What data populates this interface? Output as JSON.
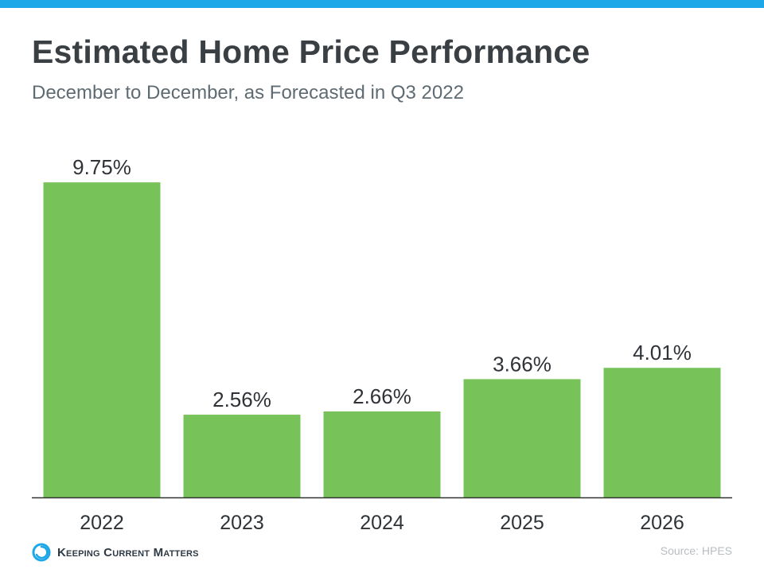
{
  "header": {
    "title": "Estimated Home Price Performance",
    "subtitle": "December to December, as Forecasted in Q3 2022"
  },
  "colors": {
    "top_bar": "#1ea7e8",
    "bar": "#77c35a",
    "axis": "#333333",
    "logo_accent": "#1ea7e8"
  },
  "chart_data": {
    "type": "bar",
    "title": "Estimated Home Price Performance",
    "subtitle": "December to December, as Forecasted in Q3 2022",
    "categories": [
      "2022",
      "2023",
      "2024",
      "2025",
      "2026"
    ],
    "values": [
      9.75,
      2.56,
      2.66,
      3.66,
      4.01
    ],
    "data_labels": [
      "9.75%",
      "2.56%",
      "2.66%",
      "3.66%",
      "4.01%"
    ],
    "unit": "%",
    "ylim": [
      0,
      10
    ],
    "grid": false,
    "legend": "none",
    "xlabel": "",
    "ylabel": ""
  },
  "footer": {
    "logo_text": "Keeping Current Matters",
    "logo_icon": "kcm-swirl-icon",
    "source": "Source: HPES"
  }
}
